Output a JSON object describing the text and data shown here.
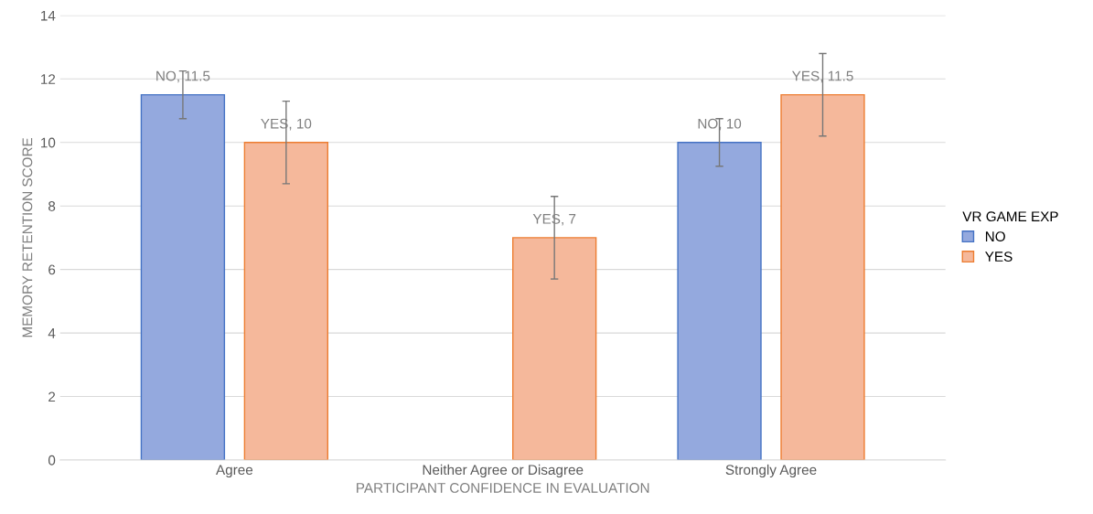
{
  "chart_data": {
    "type": "bar",
    "xlabel": "PARTICIPANT CONFIDENCE IN EVALUATION",
    "ylabel": "MEMORY RETENTION SCORE",
    "legend_title": "VR GAME EXP",
    "categories": [
      "Agree",
      "Neither Agree or Disagree",
      "Strongly Agree"
    ],
    "series": [
      {
        "name": "NO",
        "color": "#94a9de",
        "values": [
          11.5,
          null,
          10
        ],
        "errors": [
          0.75,
          null,
          0.75
        ],
        "value_labels": [
          "NO, 11.5",
          null,
          "NO, 10"
        ]
      },
      {
        "name": "YES",
        "color": "#f5b89b",
        "values": [
          10,
          7,
          11.5
        ],
        "errors": [
          1.3,
          1.3,
          1.3
        ],
        "value_labels": [
          "YES, 10",
          "YES, 7",
          "YES, 11.5"
        ]
      }
    ],
    "ylim": [
      0,
      14
    ],
    "yticks": [
      0,
      2,
      4,
      6,
      8,
      10,
      12,
      14
    ],
    "grid": "y",
    "legend": "right"
  }
}
